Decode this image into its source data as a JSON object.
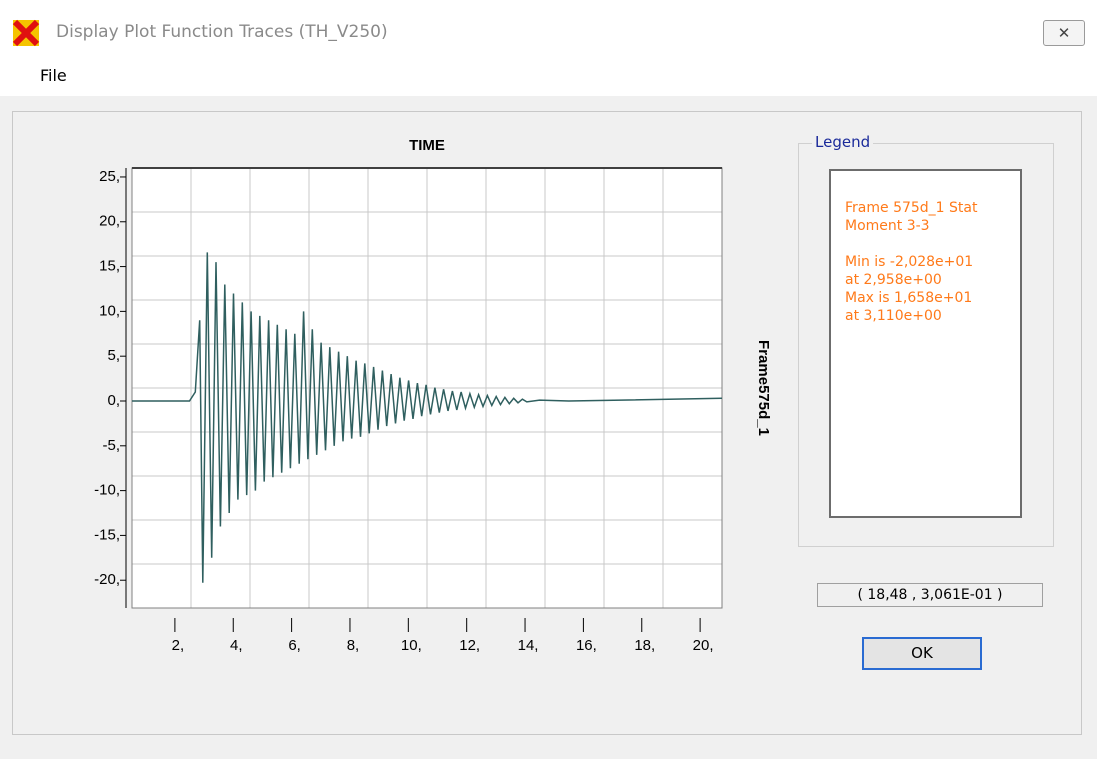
{
  "window": {
    "title": "Display Plot Function Traces  (TH_V250)",
    "menu": [
      "File"
    ]
  },
  "chart_data": {
    "type": "line",
    "title": "TIME",
    "y_label": "Frame575d_1",
    "color": "#2f5f5f",
    "grid": true,
    "xlim": [
      0.53,
      20.75
    ],
    "ylim": [
      -23.1,
      26
    ],
    "xticks": [
      {
        "value": 2,
        "label": "2,"
      },
      {
        "value": 4,
        "label": "4,"
      },
      {
        "value": 6,
        "label": "6,"
      },
      {
        "value": 8,
        "label": "8,"
      },
      {
        "value": 10,
        "label": "10,"
      },
      {
        "value": 12,
        "label": "12,"
      },
      {
        "value": 14,
        "label": "14,"
      },
      {
        "value": 16,
        "label": "16,"
      },
      {
        "value": 18,
        "label": "18,"
      },
      {
        "value": 20,
        "label": "20,"
      }
    ],
    "yticks": [
      {
        "value": 25,
        "label": "25,"
      },
      {
        "value": 20,
        "label": "20,"
      },
      {
        "value": 15,
        "label": "15,"
      },
      {
        "value": 10,
        "label": "10,"
      },
      {
        "value": 5,
        "label": "5,"
      },
      {
        "value": 0,
        "label": "0,"
      },
      {
        "value": -5,
        "label": "-5,"
      },
      {
        "value": -10,
        "label": "-10,"
      },
      {
        "value": -15,
        "label": "-15,"
      },
      {
        "value": -20,
        "label": "-20,"
      }
    ],
    "x": [
      0.53,
      2.5,
      2.7,
      2.85,
      2.958,
      3.11,
      3.26,
      3.41,
      3.56,
      3.71,
      3.86,
      4.01,
      4.16,
      4.31,
      4.46,
      4.61,
      4.76,
      4.91,
      5.06,
      5.21,
      5.36,
      5.51,
      5.66,
      5.81,
      5.96,
      6.11,
      6.26,
      6.41,
      6.56,
      6.71,
      6.86,
      7.01,
      7.16,
      7.31,
      7.46,
      7.61,
      7.76,
      7.91,
      8.06,
      8.21,
      8.36,
      8.51,
      8.66,
      8.81,
      8.96,
      9.11,
      9.26,
      9.41,
      9.56,
      9.71,
      9.86,
      10.01,
      10.16,
      10.31,
      10.46,
      10.61,
      10.76,
      10.91,
      11.06,
      11.21,
      11.36,
      11.51,
      11.66,
      11.81,
      11.96,
      12.11,
      12.26,
      12.41,
      12.56,
      12.71,
      12.86,
      13.01,
      13.16,
      13.31,
      13.46,
      13.61,
      13.76,
      13.91,
      14.06,
      14.5,
      15.5,
      20.75
    ],
    "values": [
      0,
      0,
      1,
      9,
      -20.28,
      16.58,
      -17.5,
      15.5,
      -14,
      13,
      -12.5,
      12,
      -11,
      11,
      -10.5,
      10,
      -10,
      9.5,
      -9,
      9,
      -8.5,
      8.5,
      -8,
      8,
      -7.5,
      7.5,
      -7,
      10,
      -6.5,
      8,
      -6,
      6.5,
      -5.5,
      6,
      -5,
      5.5,
      -4.5,
      5,
      -4.2,
      4.5,
      -4,
      4.2,
      -3.6,
      3.8,
      -3.2,
      3.4,
      -2.8,
      3,
      -2.5,
      2.6,
      -2.2,
      2.3,
      -2,
      2,
      -1.7,
      1.8,
      -1.5,
      1.5,
      -1.3,
      1.3,
      -1.1,
      1.1,
      -1,
      1,
      -0.8,
      0.8,
      -0.7,
      0.7,
      -0.6,
      0.6,
      -0.5,
      0.5,
      -0.4,
      0.4,
      -0.3,
      0.3,
      -0.2,
      0.2,
      -0.1,
      0.1,
      0,
      0.3
    ]
  },
  "legend": {
    "title": "Legend",
    "groups": [
      [
        "Frame 575d_1  Stat",
        "Moment 3-3"
      ],
      [
        "Min is -2,028e+01",
        "at 2,958e+00",
        "Max is 1,658e+01",
        "at 3,110e+00"
      ]
    ]
  },
  "cursor": "( 18,48 , 3,061E-01 )",
  "button": "OK"
}
